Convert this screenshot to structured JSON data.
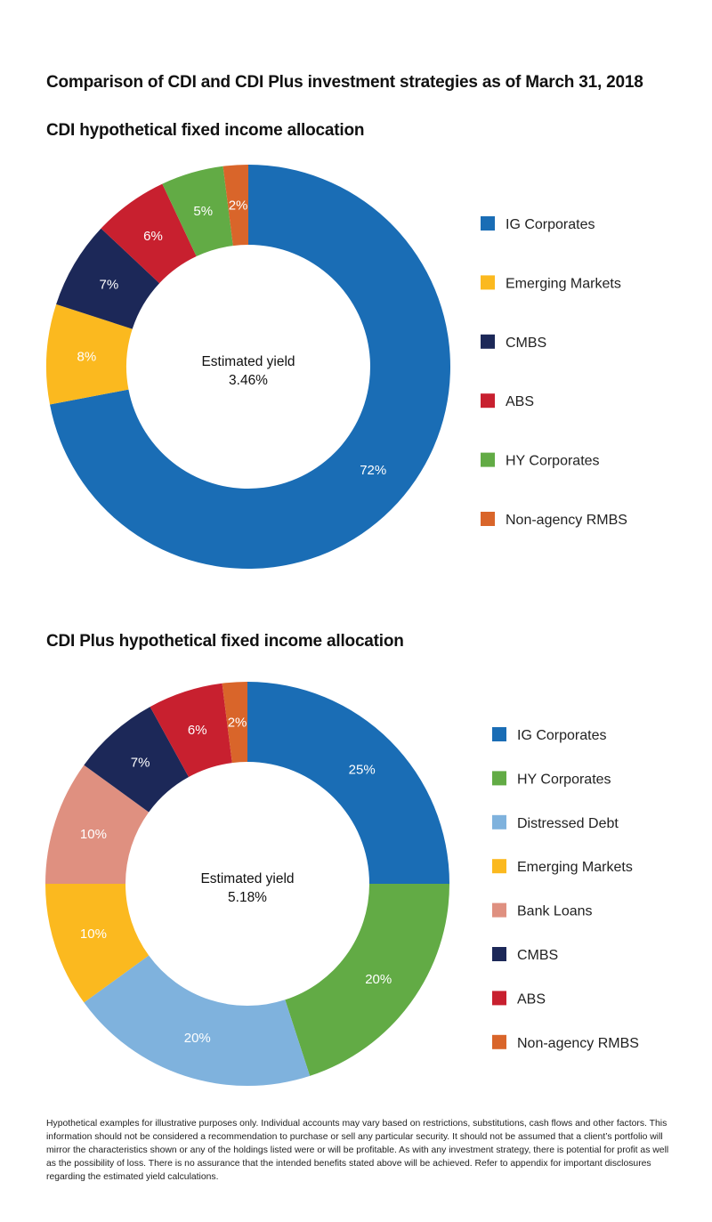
{
  "title": "Comparison of CDI and CDI Plus investment strategies as of March 31, 2018",
  "chart_data": [
    {
      "type": "pie",
      "variant": "donut",
      "title": "CDI hypothetical fixed income allocation",
      "center_label": "Estimated yield",
      "center_value": "3.46%",
      "legend_position": "right",
      "slices": [
        {
          "name": "IG Corporates",
          "value": 72,
          "label": "72%",
          "color": "#1a6db5"
        },
        {
          "name": "Emerging Markets",
          "value": 8,
          "label": "8%",
          "color": "#fbb91f"
        },
        {
          "name": "CMBS",
          "value": 7,
          "label": "7%",
          "color": "#1c2858"
        },
        {
          "name": "ABS",
          "value": 6,
          "label": "6%",
          "color": "#c8202f"
        },
        {
          "name": "HY Corporates",
          "value": 5,
          "label": "5%",
          "color": "#62ab45"
        },
        {
          "name": "Non-agency RMBS",
          "value": 2,
          "label": "2%",
          "color": "#d9652a"
        }
      ]
    },
    {
      "type": "pie",
      "variant": "donut",
      "title": "CDI Plus hypothetical fixed income allocation",
      "center_label": "Estimated yield",
      "center_value": "5.18%",
      "legend_position": "right",
      "slices": [
        {
          "name": "IG Corporates",
          "value": 25,
          "label": "25%",
          "color": "#1a6db5"
        },
        {
          "name": "HY Corporates",
          "value": 20,
          "label": "20%",
          "color": "#62ab45"
        },
        {
          "name": "Distressed Debt",
          "value": 20,
          "label": "20%",
          "color": "#7fb2dd"
        },
        {
          "name": "Emerging Markets",
          "value": 10,
          "label": "10%",
          "color": "#fbb91f"
        },
        {
          "name": "Bank Loans",
          "value": 10,
          "label": "10%",
          "color": "#df9080"
        },
        {
          "name": "CMBS",
          "value": 7,
          "label": "7%",
          "color": "#1c2858"
        },
        {
          "name": "ABS",
          "value": 6,
          "label": "6%",
          "color": "#c8202f"
        },
        {
          "name": "Non-agency RMBS",
          "value": 2,
          "label": "2%",
          "color": "#d9652a"
        }
      ]
    }
  ],
  "footnote": "Hypothetical examples for illustrative purposes only. Individual accounts may vary based on restrictions, substitutions, cash flows and other factors. This information should not be considered a recommendation to purchase or sell any particular security. It should not be assumed that a client’s portfolio will mirror the characteristics shown or any of the holdings listed were or will be profitable. As with any investment strategy, there is potential for profit as well as the possibility of loss. There is no assurance that the intended benefits stated above will be achieved. Refer to appendix for important disclosures regarding the estimated yield calculations."
}
